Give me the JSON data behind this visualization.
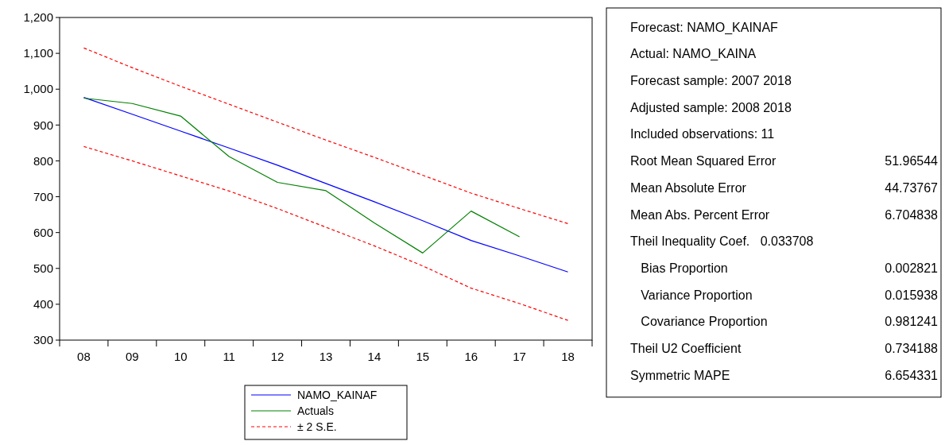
{
  "chart_data": [
    {
      "type": "line",
      "categories": [
        "08",
        "09",
        "10",
        "11",
        "12",
        "13",
        "14",
        "15",
        "16",
        "17",
        "18"
      ],
      "ylim": [
        300,
        1200
      ],
      "yticks": [
        300,
        400,
        500,
        600,
        700,
        800,
        900,
        {
          "value": 1000,
          "label": "1,000"
        },
        {
          "value": 1100,
          "label": "1,100"
        },
        {
          "value": 1200,
          "label": "1,200"
        }
      ],
      "grid": false,
      "legend": "bottom",
      "marker": "none",
      "series": [
        {
          "name": "NAMO_KAINAF",
          "color": "#0000ff",
          "line_style": "solid",
          "values": [
            977,
            930,
            883,
            836,
            788,
            737,
            686,
            633,
            578,
            535,
            490
          ]
        },
        {
          "name": "Actuals",
          "color": "#008000",
          "line_style": "solid",
          "values": [
            975,
            960,
            925,
            812,
            740,
            717,
            627,
            543,
            660,
            588,
            null
          ]
        },
        {
          "name": "± 2 S.E.",
          "color": "#ff0000",
          "line_style": "dashed",
          "values": [
            1115,
            1060,
            1008,
            958,
            908,
            858,
            810,
            760,
            710,
            667,
            625
          ]
        },
        {
          "color": "#ff0000",
          "line_style": "dashed",
          "values": [
            840,
            800,
            758,
            716,
            667,
            615,
            563,
            507,
            445,
            402,
            355
          ]
        }
      ]
    },
    {
      "type": "other",
      "categories": [
        "Forecast: NAMO_KAINAF",
        "Actual: NAMO_KAINA",
        "Forecast sample: 2007 2018",
        "Adjusted sample: 2008 2018",
        "Included observations: 11",
        "Root Mean Squared Error",
        "Mean Absolute Error",
        "Mean Abs. Percent Error",
        "Theil Inequality Coef.   0.033708",
        "   Bias Proportion",
        "   Variance Proportion",
        "   Covariance Proportion",
        "Theil U2 Coefficient",
        "Symmetric MAPE"
      ],
      "value_labels": [
        null,
        null,
        null,
        null,
        null,
        "51.96544",
        "44.73767",
        "6.704838",
        null,
        "0.002821",
        "0.015938",
        "0.981241",
        "0.734188",
        "6.654331"
      ]
    }
  ]
}
